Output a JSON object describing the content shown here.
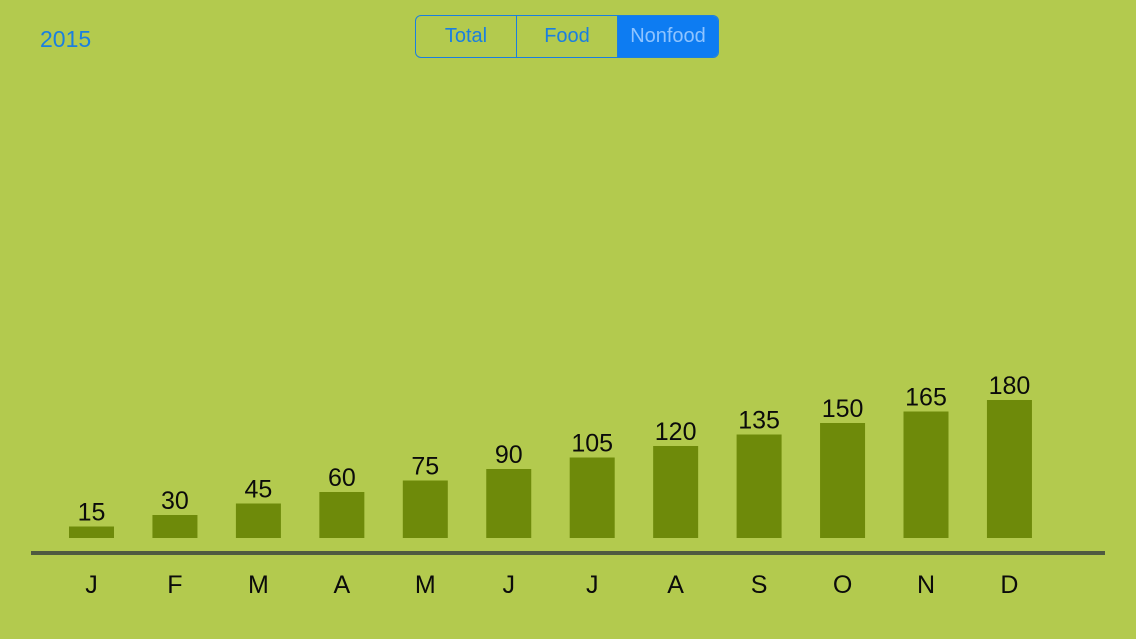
{
  "header": {
    "year": "2015",
    "segments": [
      {
        "label": "Total",
        "selected": false
      },
      {
        "label": "Food",
        "selected": false
      },
      {
        "label": "Nonfood",
        "selected": true
      }
    ]
  },
  "colors": {
    "background": "#b3ca4e",
    "bar": "#6e8a0a",
    "axis": "#4f5a40",
    "accent": "#1a7fe0"
  },
  "chart_data": {
    "type": "bar",
    "categories": [
      "J",
      "F",
      "M",
      "A",
      "M",
      "J",
      "J",
      "A",
      "S",
      "O",
      "N",
      "D"
    ],
    "values": [
      15,
      30,
      45,
      60,
      75,
      90,
      105,
      120,
      135,
      150,
      165,
      180
    ],
    "title": "",
    "xlabel": "",
    "ylabel": "",
    "ylim": [
      0,
      180
    ],
    "data_labels": true,
    "grid": false,
    "legend": "none"
  }
}
